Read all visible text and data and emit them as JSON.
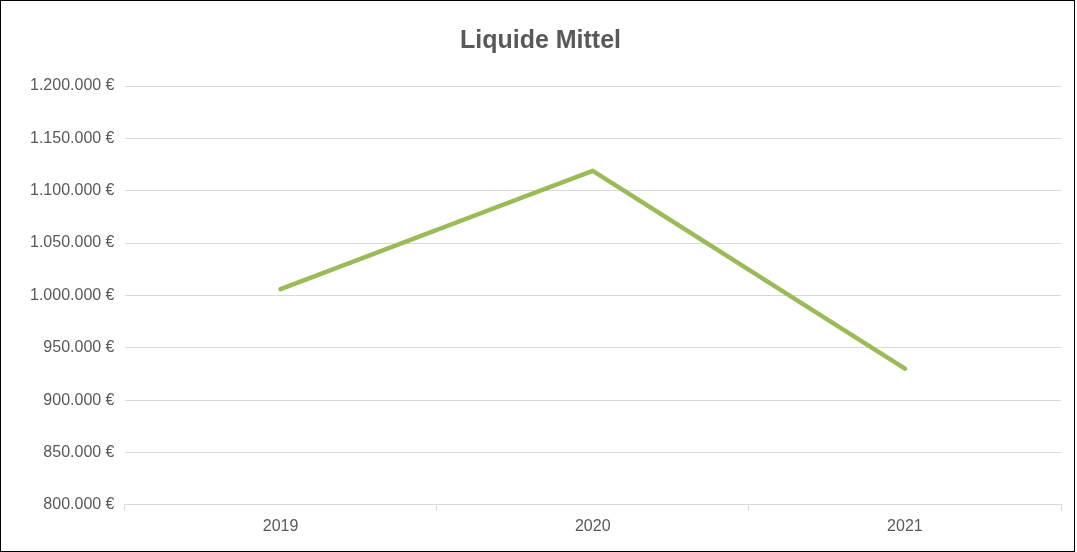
{
  "chart_data": {
    "type": "line",
    "title": "Liquide Mittel",
    "categories": [
      "2019",
      "2020",
      "2021"
    ],
    "series": [
      {
        "color": "#9bbb59",
        "values": [
          1006000,
          1119000,
          930000
        ]
      }
    ],
    "ylim": [
      800000,
      1200000
    ],
    "yticks": [
      {
        "value": 800000,
        "label": "800.000 €"
      },
      {
        "value": 850000,
        "label": "850.000 €"
      },
      {
        "value": 900000,
        "label": "900.000 €"
      },
      {
        "value": 950000,
        "label": "950.000 €"
      },
      {
        "value": 1000000,
        "label": "1.000.000 €"
      },
      {
        "value": 1050000,
        "label": "1.050.000 €"
      },
      {
        "value": 1100000,
        "label": "1.100.000 €"
      },
      {
        "value": 1150000,
        "label": "1.150.000 €"
      },
      {
        "value": 1200000,
        "label": "1.200.000 €"
      }
    ],
    "grid": "y",
    "legend": false,
    "marker": "none",
    "line_style": "solid"
  }
}
